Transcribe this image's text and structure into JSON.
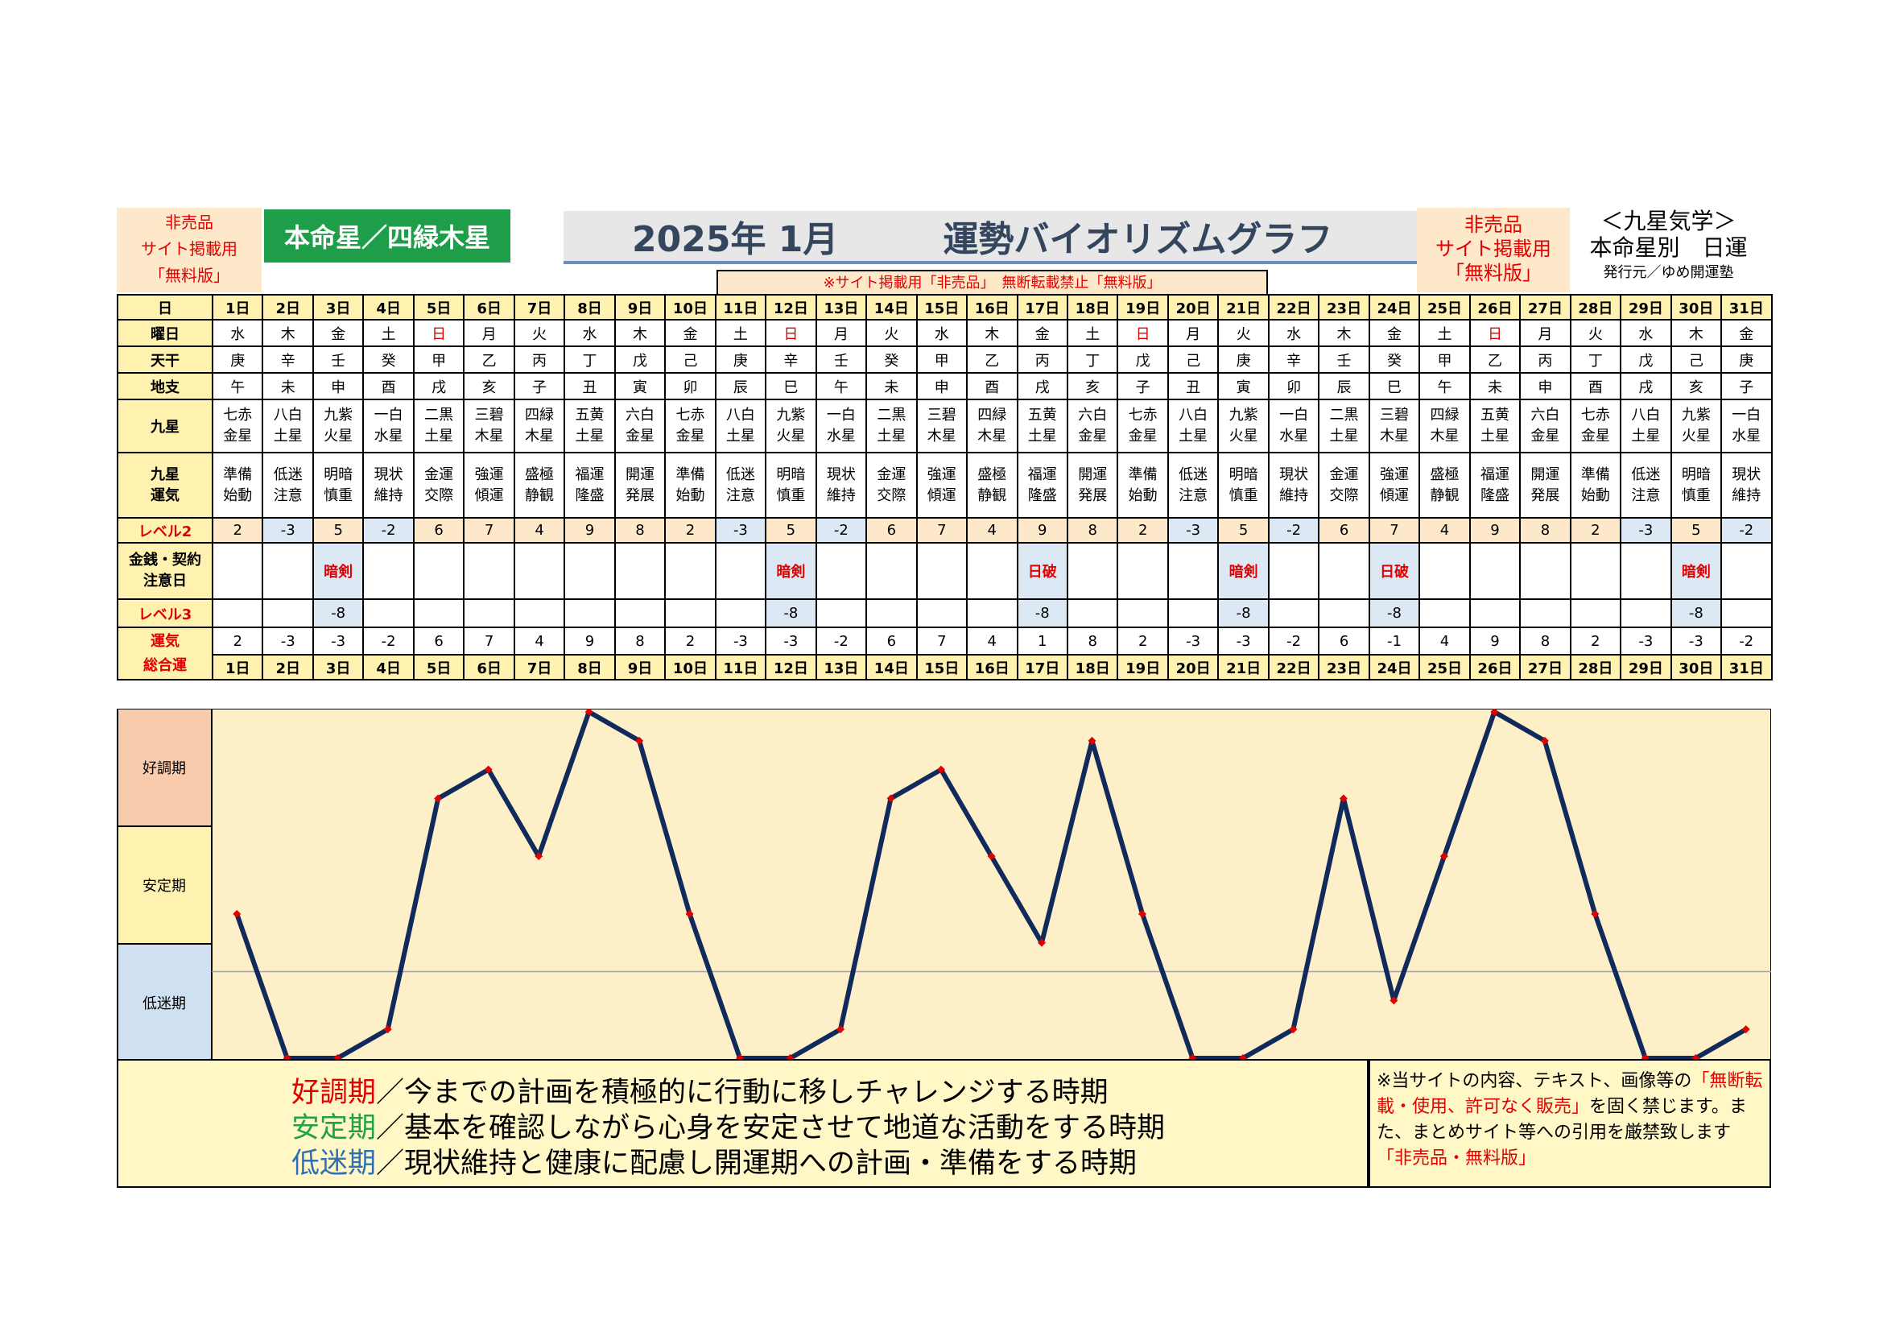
{
  "header": {
    "left_tag": [
      "非売品",
      "サイト掲載用",
      "「無料版」"
    ],
    "honmei": "本命星／四緑木星",
    "title_month": "2025年 1月",
    "title_main": "運勢バイオリズムグラフ",
    "right_tag": [
      "非売品",
      "サイト掲載用",
      "「無料版」"
    ],
    "kyusei_title": "＜九星気学＞",
    "kyusei_sub": "本命星別　日運",
    "publisher": "発行元／ゆめ開運塾",
    "notice": "※サイト掲載用「非売品」　無断転載禁止「無料版」"
  },
  "row_labels": {
    "day": "日",
    "weekday": "曜日",
    "tenkan": "天干",
    "chishi": "地支",
    "kyusei": "九星",
    "kyusei_unki": [
      "九星",
      "運気"
    ],
    "level2": "レベル2",
    "money": [
      "金銭・契約",
      "注意日"
    ],
    "level3": "レベル3",
    "total": [
      "運気",
      "総合運"
    ]
  },
  "colors": {
    "line": "#102a5c",
    "marker": "#e00000",
    "good": "#f8cbad",
    "stable": "#fff2b0",
    "low": "#cfe0f0",
    "plot_bg": "#fdf0c8"
  },
  "chart_data": {
    "type": "line",
    "title": "運勢バイオリズムグラフ",
    "categories": [
      "1日",
      "2日",
      "3日",
      "4日",
      "5日",
      "6日",
      "7日",
      "8日",
      "9日",
      "10日",
      "11日",
      "12日",
      "13日",
      "14日",
      "15日",
      "16日",
      "17日",
      "18日",
      "19日",
      "20日",
      "21日",
      "22日",
      "23日",
      "24日",
      "25日",
      "26日",
      "27日",
      "28日",
      "29日",
      "30日",
      "31日"
    ],
    "weekdays": [
      "水",
      "木",
      "金",
      "土",
      "日",
      "月",
      "火",
      "水",
      "木",
      "金",
      "土",
      "日",
      "月",
      "火",
      "水",
      "木",
      "金",
      "土",
      "日",
      "月",
      "火",
      "水",
      "木",
      "金",
      "土",
      "日",
      "月",
      "火",
      "水",
      "木",
      "金"
    ],
    "tenkan": [
      "庚",
      "辛",
      "壬",
      "癸",
      "甲",
      "乙",
      "丙",
      "丁",
      "戊",
      "己",
      "庚",
      "辛",
      "壬",
      "癸",
      "甲",
      "乙",
      "丙",
      "丁",
      "戊",
      "己",
      "庚",
      "辛",
      "壬",
      "癸",
      "甲",
      "乙",
      "丙",
      "丁",
      "戊",
      "己",
      "庚"
    ],
    "chishi": [
      "午",
      "未",
      "申",
      "酉",
      "戌",
      "亥",
      "子",
      "丑",
      "寅",
      "卯",
      "辰",
      "巳",
      "午",
      "未",
      "申",
      "酉",
      "戌",
      "亥",
      "子",
      "丑",
      "寅",
      "卯",
      "辰",
      "巳",
      "午",
      "未",
      "申",
      "酉",
      "戌",
      "亥",
      "子"
    ],
    "kyusei": [
      [
        "七赤",
        "金星"
      ],
      [
        "八白",
        "土星"
      ],
      [
        "九紫",
        "火星"
      ],
      [
        "一白",
        "水星"
      ],
      [
        "二黒",
        "土星"
      ],
      [
        "三碧",
        "木星"
      ],
      [
        "四緑",
        "木星"
      ],
      [
        "五黄",
        "土星"
      ],
      [
        "六白",
        "金星"
      ],
      [
        "七赤",
        "金星"
      ],
      [
        "八白",
        "土星"
      ],
      [
        "九紫",
        "火星"
      ],
      [
        "一白",
        "水星"
      ],
      [
        "二黒",
        "土星"
      ],
      [
        "三碧",
        "木星"
      ],
      [
        "四緑",
        "木星"
      ],
      [
        "五黄",
        "土星"
      ],
      [
        "六白",
        "金星"
      ],
      [
        "七赤",
        "金星"
      ],
      [
        "八白",
        "土星"
      ],
      [
        "九紫",
        "火星"
      ],
      [
        "一白",
        "水星"
      ],
      [
        "二黒",
        "土星"
      ],
      [
        "三碧",
        "木星"
      ],
      [
        "四緑",
        "木星"
      ],
      [
        "五黄",
        "土星"
      ],
      [
        "六白",
        "金星"
      ],
      [
        "七赤",
        "金星"
      ],
      [
        "八白",
        "土星"
      ],
      [
        "九紫",
        "火星"
      ],
      [
        "一白",
        "水星"
      ]
    ],
    "unki": [
      [
        "準備",
        "始動"
      ],
      [
        "低迷",
        "注意"
      ],
      [
        "明暗",
        "慎重"
      ],
      [
        "現状",
        "維持"
      ],
      [
        "金運",
        "交際"
      ],
      [
        "強運",
        "傾運"
      ],
      [
        "盛極",
        "静観"
      ],
      [
        "福運",
        "隆盛"
      ],
      [
        "開運",
        "発展"
      ],
      [
        "準備",
        "始動"
      ],
      [
        "低迷",
        "注意"
      ],
      [
        "明暗",
        "慎重"
      ],
      [
        "現状",
        "維持"
      ],
      [
        "金運",
        "交際"
      ],
      [
        "強運",
        "傾運"
      ],
      [
        "盛極",
        "静観"
      ],
      [
        "福運",
        "隆盛"
      ],
      [
        "開運",
        "発展"
      ],
      [
        "準備",
        "始動"
      ],
      [
        "低迷",
        "注意"
      ],
      [
        "明暗",
        "慎重"
      ],
      [
        "現状",
        "維持"
      ],
      [
        "金運",
        "交際"
      ],
      [
        "強運",
        "傾運"
      ],
      [
        "盛極",
        "静観"
      ],
      [
        "福運",
        "隆盛"
      ],
      [
        "開運",
        "発展"
      ],
      [
        "準備",
        "始動"
      ],
      [
        "低迷",
        "注意"
      ],
      [
        "明暗",
        "慎重"
      ],
      [
        "現状",
        "維持"
      ]
    ],
    "level2": [
      2,
      -3,
      5,
      -2,
      6,
      7,
      4,
      9,
      8,
      2,
      -3,
      5,
      -2,
      6,
      7,
      4,
      9,
      8,
      2,
      -3,
      5,
      -2,
      6,
      7,
      4,
      9,
      8,
      2,
      -3,
      5,
      -2
    ],
    "money": [
      "",
      "",
      "暗剣",
      "",
      "",
      "",
      "",
      "",
      "",
      "",
      "",
      "暗剣",
      "",
      "",
      "",
      "",
      "日破",
      "",
      "",
      "",
      "暗剣",
      "",
      "",
      "日破",
      "",
      "",
      "",
      "",
      "",
      "暗剣",
      ""
    ],
    "level3": [
      "",
      "",
      "-8",
      "",
      "",
      "",
      "",
      "",
      "",
      "",
      "",
      "-8",
      "",
      "",
      "",
      "",
      "-8",
      "",
      "",
      "",
      "-8",
      "",
      "",
      "-8",
      "",
      "",
      "",
      "",
      "",
      "-8",
      ""
    ],
    "values": [
      2,
      -3,
      -3,
      -2,
      6,
      7,
      4,
      9,
      8,
      2,
      -3,
      -3,
      -2,
      6,
      7,
      4,
      1,
      8,
      2,
      -3,
      -3,
      -2,
      6,
      -1,
      4,
      9,
      8,
      2,
      -3,
      -3,
      -2
    ],
    "ylim": [
      -3,
      9
    ],
    "bands": [
      "好調期",
      "安定期",
      "低迷期"
    ]
  },
  "legend": {
    "lines": [
      {
        "key": "好調期",
        "text": "／今までの計画を積極的に行動に移しチャレンジする時期",
        "color": "#e00000"
      },
      {
        "key": "安定期",
        "text": "／基本を確認しながら心身を安定させて地道な活動をする時期",
        "color": "#1fa04a"
      },
      {
        "key": "低迷期",
        "text": "／現状維持と健康に配慮し開運期への計画・準備をする時期",
        "color": "#2e6fb5"
      }
    ]
  },
  "disclaimer": {
    "p1": "※当サイトの内容、テキスト、画像等の",
    "p2": "「無断転載・使用、許可なく販売」",
    "p3": "を固く禁じます。また、まとめサイト等への引用を厳禁致します",
    "p4": "「非売品・無料版」"
  }
}
